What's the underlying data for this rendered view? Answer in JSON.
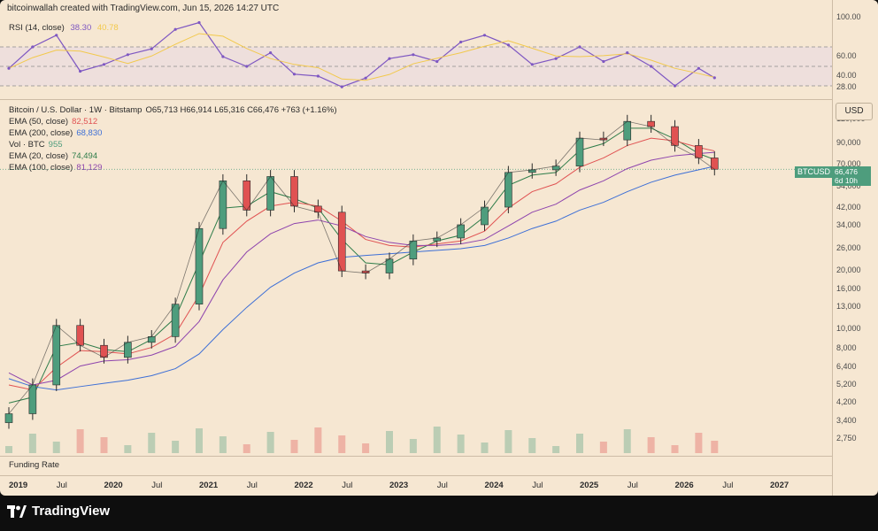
{
  "header": "bitcoinwallah created with TradingView.com, Jun 15, 2026 14:27 UTC",
  "brand": "TradingView",
  "rsi_panel": {
    "label": "RSI (14, close)",
    "value": "38.30",
    "ma_value": "40.78",
    "ticks": [
      "100.00",
      "60.00",
      "40.00",
      "28.00"
    ],
    "colors": {
      "rsi": "#7e57c2",
      "ma": "#f2c94c",
      "fill": "#9ed58a"
    }
  },
  "price_panel": {
    "legend": [
      {
        "label": "Bitcoin / U.S. Dollar · 1W · Bitstamp",
        "value": "O65,713 H66,914 L65,316 C66,476 +763 (+1.16%)",
        "color": "#2a2a2a"
      },
      {
        "label": "EMA (50, close)",
        "value": "82,512",
        "color": "#e05252"
      },
      {
        "label": "EMA (200, close)",
        "value": "68,830",
        "color": "#3d6fd6"
      },
      {
        "label": "Vol · BTC",
        "value": "955",
        "color": "#4e9d7d"
      },
      {
        "label": "EMA (20, close)",
        "value": "74,494",
        "color": "#2f7d4a"
      },
      {
        "label": "EMA (100, close)",
        "value": "81,129",
        "color": "#8e44ad"
      }
    ],
    "currency": "USD",
    "symbol": "BTCUSD",
    "last_price": "66,476",
    "countdown": "6d 10h",
    "ticks": [
      "120,000",
      "90,000",
      "70,000",
      "54,000",
      "42,000",
      "34,000",
      "26,000",
      "20,000",
      "16,000",
      "13,000",
      "10,000",
      "8,000",
      "6,400",
      "5,200",
      "4,200",
      "3,400",
      "2,750"
    ],
    "funding_label": "Funding Rate"
  },
  "chart_data": {
    "type": "line",
    "title": "",
    "xlabel": "",
    "ylabel": "",
    "scale": "log",
    "ylim": [
      2500,
      140000
    ],
    "x": [
      "2019-01",
      "2019-04",
      "2019-07",
      "2019-10",
      "2020-01",
      "2020-04",
      "2020-07",
      "2020-10",
      "2021-01",
      "2021-04",
      "2021-07",
      "2021-10",
      "2022-01",
      "2022-04",
      "2022-07",
      "2022-10",
      "2023-01",
      "2023-04",
      "2023-07",
      "2023-10",
      "2024-01",
      "2024-04",
      "2024-07",
      "2024-10",
      "2025-01",
      "2025-04",
      "2025-07",
      "2025-10",
      "2026-01",
      "2026-04",
      "2026-06"
    ],
    "series": [
      {
        "name": "Bitcoin / U.S. Dollar",
        "values": [
          3700,
          5200,
          10500,
          8300,
          7200,
          8600,
          9200,
          13500,
          33000,
          58000,
          41000,
          61000,
          43000,
          40000,
          20000,
          19500,
          23000,
          28500,
          29500,
          34500,
          42500,
          64000,
          66000,
          69000,
          96000,
          94000,
          117000,
          110000,
          88000,
          76000,
          66476
        ]
      },
      {
        "name": "EMA (20, close)",
        "values": [
          4200,
          4500,
          8200,
          8600,
          7900,
          7700,
          8900,
          11500,
          22000,
          42000,
          43000,
          51000,
          47000,
          42000,
          29000,
          22000,
          21500,
          25000,
          28500,
          30500,
          38000,
          55000,
          62000,
          64000,
          83000,
          90000,
          108000,
          108000,
          95000,
          80000,
          74494
        ]
      },
      {
        "name": "EMA (50, close)",
        "values": [
          5200,
          4900,
          6400,
          7800,
          7700,
          7500,
          8100,
          9500,
          15000,
          28000,
          36000,
          43000,
          45000,
          43000,
          36000,
          29000,
          27000,
          26500,
          27500,
          28500,
          32000,
          42000,
          51000,
          56000,
          68000,
          76000,
          88000,
          96000,
          93000,
          86000,
          82512
        ]
      },
      {
        "name": "EMA (100, close)",
        "values": [
          6000,
          5200,
          5500,
          6500,
          6900,
          7000,
          7400,
          8200,
          11000,
          18000,
          25000,
          31000,
          35000,
          36500,
          34000,
          30000,
          28000,
          27000,
          27000,
          27500,
          29000,
          34000,
          40000,
          44000,
          52000,
          58000,
          67000,
          74000,
          78000,
          80000,
          81129
        ]
      },
      {
        "name": "EMA (200, close)",
        "values": [
          5600,
          5100,
          4900,
          5100,
          5300,
          5500,
          5800,
          6300,
          7500,
          10000,
          13000,
          16500,
          19500,
          22000,
          23500,
          24000,
          24500,
          25000,
          25500,
          26000,
          27000,
          29500,
          33000,
          36000,
          41000,
          45000,
          51000,
          57000,
          62000,
          66000,
          68830
        ]
      }
    ],
    "rsi": {
      "values": [
        48,
        70,
        82,
        45,
        52,
        62,
        68,
        88,
        95,
        60,
        50,
        64,
        42,
        40,
        29,
        38,
        58,
        62,
        55,
        75,
        82,
        72,
        52,
        58,
        70,
        55,
        64,
        50,
        30,
        48,
        38.3
      ]
    },
    "x_ticks": [
      {
        "label": "2019",
        "bold": true
      },
      {
        "label": "Jul",
        "bold": false
      },
      {
        "label": "2020",
        "bold": true
      },
      {
        "label": "Jul",
        "bold": false
      },
      {
        "label": "2021",
        "bold": true
      },
      {
        "label": "Jul",
        "bold": false
      },
      {
        "label": "2022",
        "bold": true
      },
      {
        "label": "Jul",
        "bold": false
      },
      {
        "label": "2023",
        "bold": true
      },
      {
        "label": "Jul",
        "bold": false
      },
      {
        "label": "2024",
        "bold": true
      },
      {
        "label": "Jul",
        "bold": false
      },
      {
        "label": "2025",
        "bold": true
      },
      {
        "label": "Jul",
        "bold": false
      },
      {
        "label": "2026",
        "bold": true
      },
      {
        "label": "Jul",
        "bold": false
      },
      {
        "label": "2027",
        "bold": true
      }
    ]
  }
}
